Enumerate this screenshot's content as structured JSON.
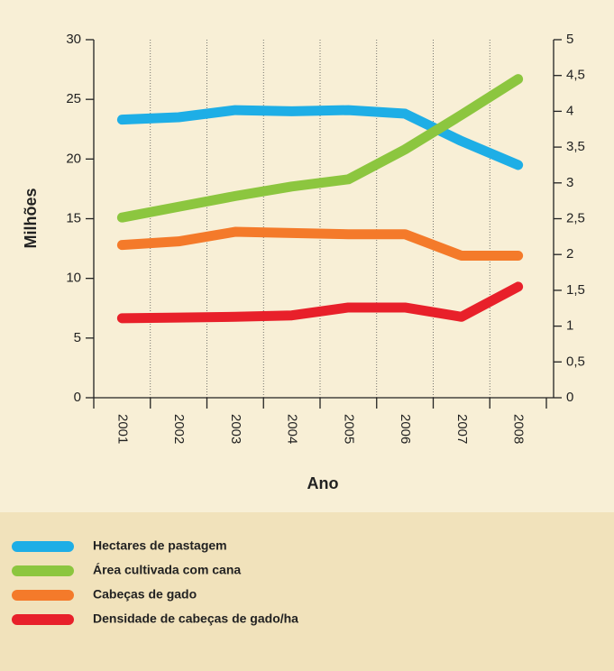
{
  "chart_data": {
    "type": "line",
    "x_label": "Ano",
    "y_label": "Milhões",
    "categories": [
      "2001",
      "2002",
      "2003",
      "2004",
      "2005",
      "2006",
      "2007",
      "2008"
    ],
    "series": [
      {
        "name": "Hectares de pastagem",
        "color": "#1eaee6",
        "values": [
          23.3,
          23.5,
          24.1,
          24.0,
          24.1,
          23.8,
          21.5,
          19.5
        ]
      },
      {
        "name": "Área cultivada com cana",
        "color": "#8cc63f",
        "values": [
          15.1,
          16.0,
          16.9,
          17.7,
          18.3,
          20.8,
          23.7,
          26.7
        ]
      },
      {
        "name": "Cabeças de gado",
        "color": "#f47a2a",
        "values": [
          12.8,
          13.1,
          13.9,
          13.8,
          13.7,
          13.7,
          11.9,
          11.9
        ]
      },
      {
        "name": "Densidade de cabeças de gado/ha",
        "color": "#e8202a",
        "axis": "y2",
        "values": [
          1.11,
          1.12,
          1.13,
          1.15,
          1.26,
          1.26,
          1.13,
          1.55
        ]
      }
    ],
    "ylim": [
      0,
      30
    ],
    "yticks": [
      0,
      5,
      10,
      15,
      20,
      25,
      30
    ],
    "y2lim": [
      0,
      5
    ],
    "y2ticks": [
      0,
      {
        "value": 0.5,
        "label": "0,5"
      },
      1,
      {
        "value": 1.5,
        "label": "1,5"
      },
      2,
      {
        "value": 2.5,
        "label": "2,5"
      },
      3,
      {
        "value": 3.5,
        "label": "3,5"
      },
      4,
      {
        "value": 4.5,
        "label": "4,5"
      },
      5
    ],
    "grid": true
  }
}
